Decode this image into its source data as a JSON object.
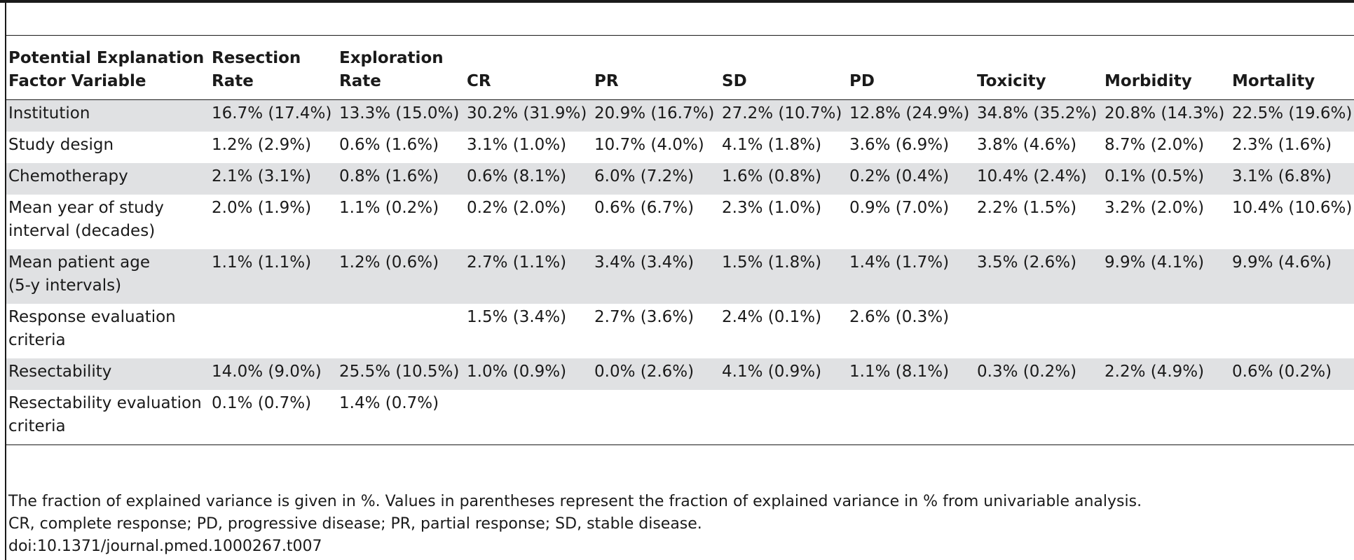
{
  "table": {
    "headers": [
      [
        "Potential Explanation",
        "Factor Variable"
      ],
      [
        "Resection",
        "Rate"
      ],
      [
        "Exploration",
        "Rate"
      ],
      [
        "",
        "CR"
      ],
      [
        "",
        "PR"
      ],
      [
        "",
        "SD"
      ],
      [
        "",
        "PD"
      ],
      [
        "",
        "Toxicity"
      ],
      [
        "",
        "Morbidity"
      ],
      [
        "",
        "Mortality"
      ]
    ],
    "rows": [
      {
        "label": [
          "Institution"
        ],
        "cells": [
          "16.7% (17.4%)",
          "13.3% (15.0%)",
          "30.2% (31.9%)",
          "20.9% (16.7%)",
          "27.2% (10.7%)",
          "12.8% (24.9%)",
          "34.8% (35.2%)",
          "20.8% (14.3%)",
          "22.5% (19.6%)"
        ]
      },
      {
        "label": [
          "Study design"
        ],
        "cells": [
          "1.2% (2.9%)",
          "0.6% (1.6%)",
          "3.1% (1.0%)",
          "10.7% (4.0%)",
          "4.1% (1.8%)",
          "3.6% (6.9%)",
          "3.8% (4.6%)",
          "8.7% (2.0%)",
          "2.3% (1.6%)"
        ]
      },
      {
        "label": [
          "Chemotherapy"
        ],
        "cells": [
          "2.1% (3.1%)",
          "0.8% (1.6%)",
          "0.6% (8.1%)",
          "6.0% (7.2%)",
          "1.6% (0.8%)",
          "0.2% (0.4%)",
          "10.4% (2.4%)",
          "0.1% (0.5%)",
          "3.1% (6.8%)"
        ]
      },
      {
        "label": [
          "Mean year of study",
          "interval (decades)"
        ],
        "cells": [
          "2.0% (1.9%)",
          "1.1% (0.2%)",
          "0.2% (2.0%)",
          "0.6% (6.7%)",
          "2.3% (1.0%)",
          "0.9% (7.0%)",
          "2.2% (1.5%)",
          "3.2% (2.0%)",
          "10.4% (10.6%)"
        ]
      },
      {
        "label": [
          "Mean patient age",
          "(5-y intervals)"
        ],
        "cells": [
          "1.1% (1.1%)",
          "1.2% (0.6%)",
          "2.7% (1.1%)",
          "3.4% (3.4%)",
          "1.5% (1.8%)",
          "1.4% (1.7%)",
          "3.5% (2.6%)",
          "9.9% (4.1%)",
          "9.9% (4.6%)"
        ]
      },
      {
        "label": [
          "Response evaluation",
          "criteria"
        ],
        "cells": [
          "",
          "",
          "1.5% (3.4%)",
          "2.7% (3.6%)",
          "2.4% (0.1%)",
          "2.6% (0.3%)",
          "",
          "",
          ""
        ]
      },
      {
        "label": [
          "Resectability"
        ],
        "cells": [
          "14.0% (9.0%)",
          "25.5% (10.5%)",
          "1.0% (0.9%)",
          "0.0% (2.6%)",
          "4.1% (0.9%)",
          "1.1% (8.1%)",
          "0.3% (0.2%)",
          "2.2% (4.9%)",
          "0.6% (0.2%)"
        ]
      },
      {
        "label": [
          "Resectability evaluation",
          "criteria"
        ],
        "cells": [
          "0.1% (0.7%)",
          "1.4% (0.7%)",
          "",
          "",
          "",
          "",
          "",
          "",
          ""
        ]
      }
    ]
  },
  "footnotes": [
    "The fraction of explained variance is given in %. Values in parentheses represent the fraction of explained variance in % from univariable analysis.",
    "CR, complete response; PD, progressive disease; PR, partial response; SD, stable disease.",
    "doi:10.1371/journal.pmed.1000267.t007"
  ]
}
